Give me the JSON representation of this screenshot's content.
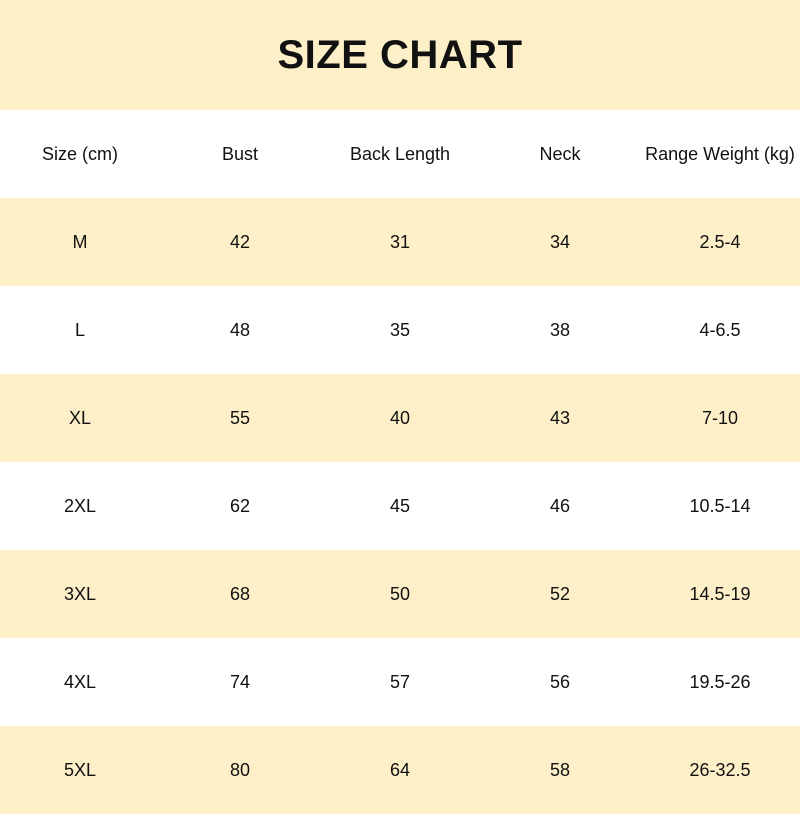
{
  "title": "SIZE CHART",
  "colors": {
    "band": "#fdf0c8",
    "white": "#ffffff"
  },
  "headers": [
    "Size (cm)",
    "Bust",
    "Back Length",
    "Neck",
    "Range Weight (kg)"
  ],
  "rows": [
    [
      "M",
      "42",
      "31",
      "34",
      "2.5-4"
    ],
    [
      "L",
      "48",
      "35",
      "38",
      "4-6.5"
    ],
    [
      "XL",
      "55",
      "40",
      "43",
      "7-10"
    ],
    [
      "2XL",
      "62",
      "45",
      "46",
      "10.5-14"
    ],
    [
      "3XL",
      "68",
      "50",
      "52",
      "14.5-19"
    ],
    [
      "4XL",
      "74",
      "57",
      "56",
      "19.5-26"
    ],
    [
      "5XL",
      "80",
      "64",
      "58",
      "26-32.5"
    ]
  ]
}
